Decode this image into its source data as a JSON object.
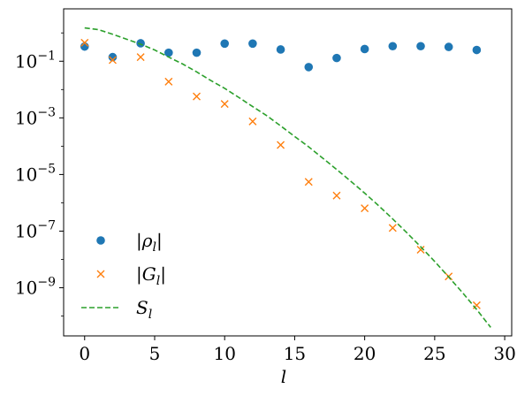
{
  "chart_data": {
    "type": "scatter",
    "xlabel": "l",
    "ylabel": "",
    "title": "",
    "xlim": [
      -1.5,
      30.5
    ],
    "ylim_log10": [
      -10.7,
      0.85
    ],
    "yscale": "log",
    "grid": false,
    "legend_position": "lower-left",
    "x_ticks": [
      0,
      5,
      10,
      15,
      20,
      25,
      30
    ],
    "y_ticks": [
      {
        "exp": -1,
        "base": "10",
        "sup": "−1"
      },
      {
        "exp": -3,
        "base": "10",
        "sup": "−3"
      },
      {
        "exp": -5,
        "base": "10",
        "sup": "−5"
      },
      {
        "exp": -7,
        "base": "10",
        "sup": "−7"
      },
      {
        "exp": -9,
        "base": "10",
        "sup": "−9"
      }
    ],
    "series": [
      {
        "name": "|ρ_l|",
        "legend_main": "|ρ",
        "legend_sub": "l",
        "legend_end": "|",
        "marker": "circle",
        "color": "#1f77b4",
        "x": [
          0,
          2,
          4,
          6,
          8,
          10,
          12,
          14,
          16,
          18,
          20,
          22,
          24,
          26,
          28
        ],
        "y": [
          0.33,
          0.14,
          0.43,
          0.2,
          0.2,
          0.42,
          0.42,
          0.26,
          0.062,
          0.13,
          0.27,
          0.34,
          0.34,
          0.32,
          0.25
        ]
      },
      {
        "name": "|G_l|",
        "legend_main": "|G",
        "legend_sub": "l",
        "legend_end": "|",
        "marker": "x",
        "color": "#ff7f0e",
        "x": [
          0,
          2,
          4,
          6,
          8,
          10,
          12,
          14,
          16,
          18,
          20,
          22,
          24,
          26,
          28
        ],
        "y": [
          0.45,
          0.11,
          0.14,
          0.019,
          0.0057,
          0.0031,
          0.00075,
          0.00011,
          5.5e-06,
          1.8e-06,
          6.4e-07,
          1.3e-07,
          2.2e-08,
          2.5e-09,
          2.4e-10
        ]
      },
      {
        "name": "S_l",
        "legend_main": "S",
        "legend_sub": "l",
        "legend_end": "",
        "marker": "dashed-line",
        "color": "#2ca02c",
        "x": [
          0,
          1,
          2,
          3,
          4,
          5,
          6,
          7,
          8,
          9,
          10,
          11,
          12,
          13,
          14,
          15,
          16,
          17,
          18,
          19,
          20,
          21,
          22,
          23,
          24,
          25,
          26,
          27,
          28,
          29
        ],
        "y": [
          1.5,
          1.3,
          0.9,
          0.6,
          0.4,
          0.25,
          0.14,
          0.08,
          0.042,
          0.021,
          0.011,
          0.0053,
          0.0025,
          0.0012,
          0.00052,
          0.00022,
          9.5e-05,
          3.8e-05,
          1.5e-05,
          5.8e-06,
          2.2e-06,
          7.9e-07,
          2.7e-07,
          8.9e-08,
          2.8e-08,
          8.5e-09,
          2.4e-09,
          6.6e-10,
          1.7e-10,
          4e-11
        ]
      }
    ]
  }
}
